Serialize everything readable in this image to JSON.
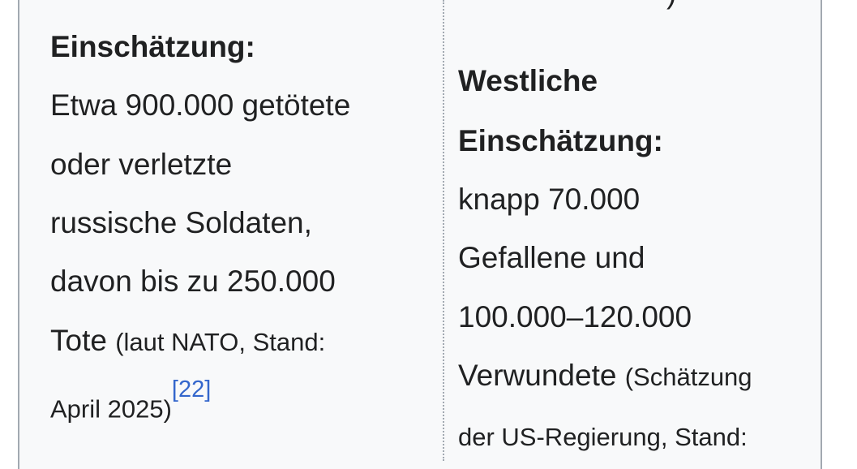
{
  "left_cell": {
    "heading": "Einschätzung:",
    "lines": [
      "Etwa 900.000 getötete",
      "oder verletzte",
      "russische Soldaten,",
      "davon bis zu 250.000",
      "Tote"
    ],
    "note_1": "(laut NATO, Stand:",
    "note_2": "April 2025)",
    "ref": "[22]"
  },
  "right_cell": {
    "top_fragment": ")",
    "heading_1": "Westliche",
    "heading_2": "Einschätzung:",
    "lines": [
      "knapp 70.000",
      "Gefallene und",
      "100.000–120.000",
      "Verwundete"
    ],
    "note_1": "(Schätzung",
    "note_2": "der US-Regierung, Stand:"
  },
  "colors": {
    "link": "#3366cc",
    "text": "#202122",
    "background": "#f8f9fa",
    "border": "#a2a9b1"
  }
}
